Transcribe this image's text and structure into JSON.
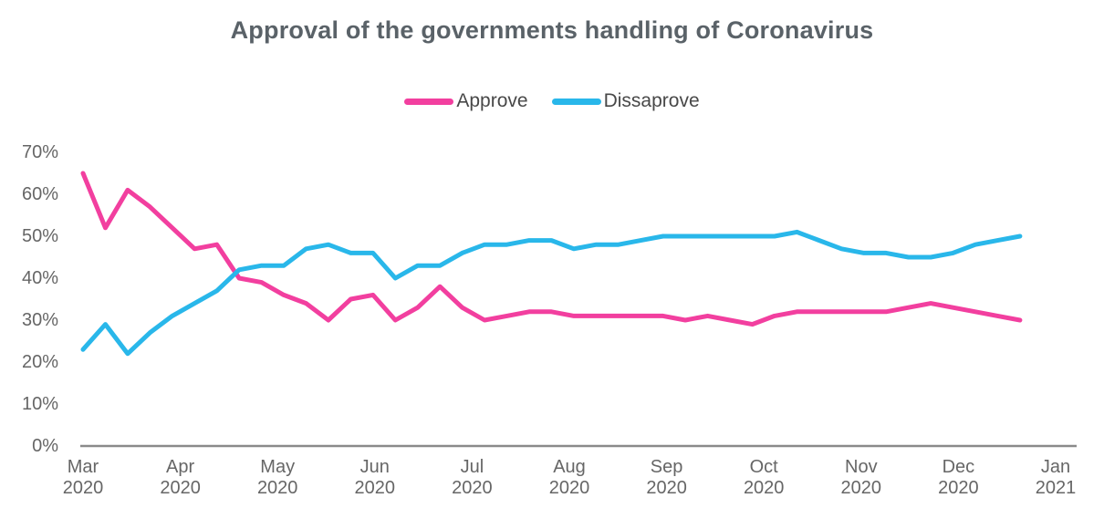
{
  "title": "Approval of the governments handling of Coronavirus",
  "colors": {
    "title_text": "#5A6268",
    "tick_text": "#666666",
    "legend_text": "#484848",
    "axis_line": "#8A8A8A",
    "background": "#FFFFFF",
    "approve": "#F23F9F",
    "dissaprove": "#29B7EA"
  },
  "chart_data": {
    "type": "line",
    "title": "Approval of the governments handling of Coronavirus",
    "xlabel": "",
    "ylabel": "",
    "ylim": [
      0,
      70
    ],
    "y_tick_step": 10,
    "y_tick_labels": [
      "0%",
      "10%",
      "20%",
      "30%",
      "40%",
      "50%",
      "60%",
      "70%"
    ],
    "x_tick_labels": [
      {
        "month": "Mar",
        "year": "2020"
      },
      {
        "month": "Apr",
        "year": "2020"
      },
      {
        "month": "May",
        "year": "2020"
      },
      {
        "month": "Jun",
        "year": "2020"
      },
      {
        "month": "Jul",
        "year": "2020"
      },
      {
        "month": "Aug",
        "year": "2020"
      },
      {
        "month": "Sep",
        "year": "2020"
      },
      {
        "month": "Oct",
        "year": "2020"
      },
      {
        "month": "Nov",
        "year": "2020"
      },
      {
        "month": "Dec",
        "year": "2020"
      },
      {
        "month": "Jan",
        "year": "2021"
      }
    ],
    "x_frequency": "weekly",
    "grid": false,
    "legend_position": "top-center",
    "series": [
      {
        "name": "Approve",
        "color": "#F23F9F",
        "values": [
          65,
          52,
          61,
          57,
          52,
          47,
          48,
          40,
          39,
          36,
          34,
          30,
          35,
          36,
          30,
          33,
          38,
          33,
          30,
          31,
          32,
          32,
          31,
          31,
          31,
          31,
          31,
          30,
          31,
          30,
          29,
          31,
          32,
          32,
          32,
          32,
          32,
          33,
          34,
          33,
          32,
          31,
          30
        ]
      },
      {
        "name": "Dissaprove",
        "color": "#29B7EA",
        "values": [
          23,
          29,
          22,
          27,
          31,
          34,
          37,
          42,
          43,
          43,
          47,
          48,
          46,
          46,
          40,
          43,
          43,
          46,
          48,
          48,
          49,
          49,
          47,
          48,
          48,
          49,
          50,
          50,
          50,
          50,
          50,
          50,
          51,
          49,
          47,
          46,
          46,
          45,
          45,
          46,
          48,
          49,
          50
        ]
      }
    ]
  }
}
